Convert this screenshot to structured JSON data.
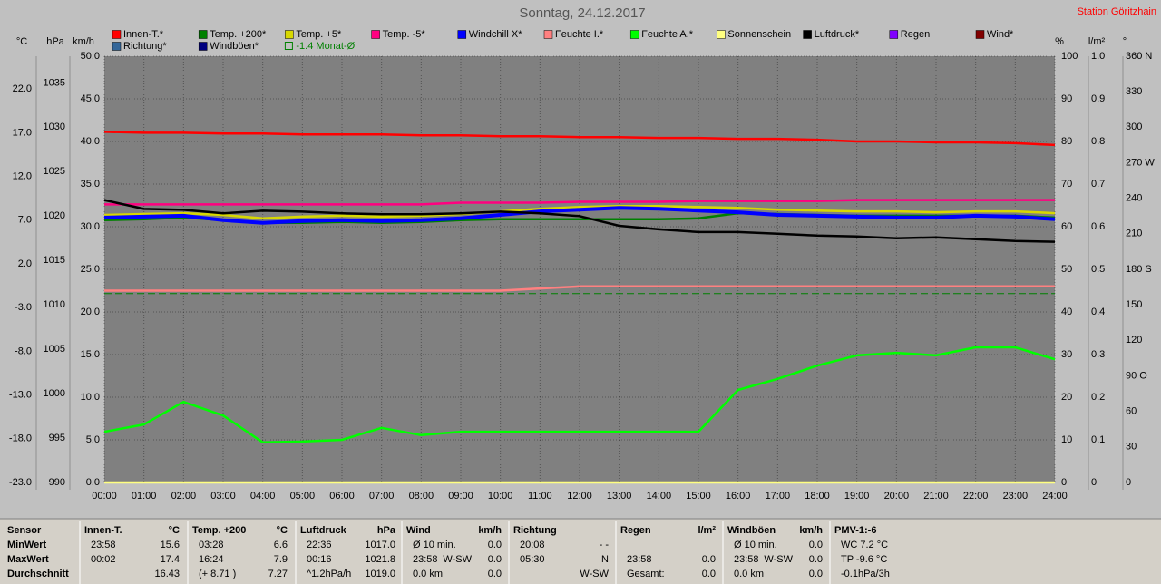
{
  "chart_data": {
    "type": "line",
    "title": "Sonntag, 24.12.2017",
    "station": "Station Göritzhain",
    "x": [
      0,
      1,
      2,
      3,
      4,
      5,
      6,
      7,
      8,
      9,
      10,
      11,
      12,
      13,
      14,
      15,
      16,
      17,
      18,
      19,
      20,
      21,
      22,
      23,
      24
    ],
    "xlim": [
      0,
      24
    ],
    "xticks": [
      {
        "value": 0,
        "label": "00:00"
      },
      {
        "value": 1,
        "label": "01:00"
      },
      {
        "value": 2,
        "label": "02:00"
      },
      {
        "value": 3,
        "label": "03:00"
      },
      {
        "value": 4,
        "label": "04:00"
      },
      {
        "value": 5,
        "label": "05:00"
      },
      {
        "value": 6,
        "label": "06:00"
      },
      {
        "value": 7,
        "label": "07:00"
      },
      {
        "value": 8,
        "label": "08:00"
      },
      {
        "value": 9,
        "label": "09:00"
      },
      {
        "value": 10,
        "label": "10:00"
      },
      {
        "value": 11,
        "label": "11:00"
      },
      {
        "value": 12,
        "label": "12:00"
      },
      {
        "value": 13,
        "label": "13:00"
      },
      {
        "value": 14,
        "label": "14:00"
      },
      {
        "value": 15,
        "label": "15:00"
      },
      {
        "value": 16,
        "label": "16:00"
      },
      {
        "value": 17,
        "label": "17:00"
      },
      {
        "value": 18,
        "label": "18:00"
      },
      {
        "value": 19,
        "label": "19:00"
      },
      {
        "value": 20,
        "label": "20:00"
      },
      {
        "value": 21,
        "label": "21:00"
      },
      {
        "value": 22,
        "label": "22:00"
      },
      {
        "value": 23,
        "label": "23:00"
      },
      {
        "value": 24,
        "label": "24:00"
      }
    ],
    "grid": true,
    "axes": {
      "temp": {
        "label": "°C",
        "lim": [
          -23,
          25.75
        ],
        "ticks": [
          {
            "value": 22,
            "label": "22.0"
          },
          {
            "value": 17,
            "label": "17.0"
          },
          {
            "value": 12,
            "label": "12.0"
          },
          {
            "value": 7,
            "label": "7.0"
          },
          {
            "value": 2,
            "label": "2.0"
          },
          {
            "value": -3,
            "label": "-3.0"
          },
          {
            "value": -8,
            "label": "-8.0"
          },
          {
            "value": -13,
            "label": "-13.0"
          },
          {
            "value": -18,
            "label": "-18.0"
          },
          {
            "value": -23,
            "label": "-23.0"
          }
        ]
      },
      "hpa": {
        "label": "hPa",
        "lim": [
          990,
          1038
        ],
        "ticks": [
          1035,
          1030,
          1025,
          1020,
          1015,
          1010,
          1005,
          1000,
          995,
          990
        ]
      },
      "kmh": {
        "label": "km/h",
        "lim": [
          0,
          50
        ],
        "ticks": [
          {
            "value": 50,
            "label": "50.0"
          },
          {
            "value": 45,
            "label": "45.0"
          },
          {
            "value": 40,
            "label": "40.0"
          },
          {
            "value": 35,
            "label": "35.0"
          },
          {
            "value": 30,
            "label": "30.0"
          },
          {
            "value": 25,
            "label": "25.0"
          },
          {
            "value": 20,
            "label": "20.0"
          },
          {
            "value": 15,
            "label": "15.0"
          },
          {
            "value": 10,
            "label": "10.0"
          },
          {
            "value": 5,
            "label": "5.0"
          },
          {
            "value": 0,
            "label": "0.0"
          }
        ]
      },
      "pct": {
        "label": "%",
        "lim": [
          0,
          100
        ],
        "ticks": [
          100,
          90,
          80,
          70,
          60,
          50,
          40,
          30,
          20,
          10,
          0
        ]
      },
      "rain": {
        "label": "l/m²",
        "lim": [
          0,
          1
        ],
        "ticks": [
          {
            "value": 1,
            "label": "1.0"
          },
          0.9,
          0.8,
          0.7,
          0.6,
          0.5,
          0.4,
          0.3,
          0.2,
          0.1,
          0
        ]
      },
      "deg": {
        "label": "°",
        "lim": [
          0,
          360
        ],
        "ticks": [
          {
            "value": 360,
            "label": "360 N"
          },
          330,
          300,
          {
            "value": 270,
            "label": "270 W"
          },
          240,
          210,
          {
            "value": 180,
            "label": "180 S"
          },
          150,
          120,
          {
            "value": 90,
            "label": "90 O"
          },
          60,
          30,
          0
        ]
      }
    },
    "series": [
      {
        "name": "Innen-T.*",
        "color": "#ff0000",
        "axis": "temp",
        "values": [
          17.1,
          17.0,
          17.0,
          16.9,
          16.9,
          16.8,
          16.8,
          16.8,
          16.7,
          16.7,
          16.6,
          16.6,
          16.5,
          16.5,
          16.4,
          16.4,
          16.3,
          16.3,
          16.2,
          16.0,
          16.0,
          15.9,
          15.9,
          15.8,
          15.6
        ]
      },
      {
        "name": "Temp. +200*",
        "color": "#008000",
        "axis": "temp",
        "values": [
          7.0,
          7.1,
          7.3,
          7.0,
          6.7,
          6.7,
          6.8,
          6.7,
          6.8,
          7.0,
          7.1,
          7.1,
          7.1,
          7.1,
          7.1,
          7.2,
          7.8,
          7.7,
          7.6,
          7.5,
          7.5,
          7.5,
          7.5,
          7.5,
          7.3
        ]
      },
      {
        "name": "Temp. +5*",
        "color": "#d8d800",
        "axis": "temp",
        "values": [
          7.6,
          7.7,
          7.8,
          7.6,
          7.2,
          7.4,
          7.5,
          7.4,
          7.5,
          7.7,
          8.0,
          8.3,
          8.5,
          8.6,
          8.6,
          8.5,
          8.4,
          8.2,
          8.1,
          8.0,
          8.0,
          7.9,
          8.0,
          8.0,
          7.8
        ]
      },
      {
        "name": "Temp. -5*",
        "color": "#ff0080",
        "axis": "temp",
        "values": [
          8.8,
          8.8,
          8.8,
          8.8,
          8.8,
          8.8,
          8.8,
          8.8,
          8.8,
          9.0,
          9.0,
          9.0,
          9.1,
          9.1,
          9.1,
          9.2,
          9.2,
          9.2,
          9.2,
          9.3,
          9.3,
          9.3,
          9.3,
          9.3,
          9.3
        ]
      },
      {
        "name": "Windchill X*",
        "color": "#0000ff",
        "axis": "temp",
        "values": [
          7.3,
          7.4,
          7.5,
          7.0,
          6.7,
          6.9,
          7.0,
          6.9,
          7.0,
          7.2,
          7.6,
          8.0,
          8.2,
          8.4,
          8.3,
          8.1,
          7.9,
          7.6,
          7.5,
          7.4,
          7.3,
          7.3,
          7.5,
          7.4,
          7.1
        ]
      },
      {
        "name": "Feuchte I.*",
        "color": "#ff8080",
        "axis": "pct",
        "values": [
          45,
          45,
          45,
          45,
          45,
          45,
          45,
          45,
          45,
          45,
          45,
          45.5,
          46,
          46,
          46,
          46,
          46,
          46,
          46,
          46,
          46,
          46,
          46,
          46,
          46
        ]
      },
      {
        "name": "Feuchte A.*",
        "color": "#00ff00",
        "axis": "pct",
        "values": [
          11.9,
          13.6,
          18.9,
          15.7,
          9.4,
          9.6,
          10,
          12.8,
          11.1,
          11.9,
          11.9,
          11.9,
          11.9,
          11.9,
          11.9,
          11.9,
          21.7,
          24.3,
          27.4,
          29.8,
          30.4,
          29.8,
          31.7,
          31.7,
          28.9
        ]
      },
      {
        "name": "Sonnenschein",
        "color": "#ffff80",
        "axis": "pct",
        "values": [
          0,
          0,
          0,
          0,
          0,
          0,
          0,
          0,
          0,
          0,
          0,
          0,
          0,
          0,
          0,
          0,
          0,
          0,
          0,
          0,
          0,
          0,
          0,
          0,
          0
        ]
      },
      {
        "name": "Luftdruck*",
        "color": "#000000",
        "axis": "hpa",
        "values": [
          1021.8,
          1020.8,
          1020.7,
          1020.3,
          1020.6,
          1020.5,
          1020.3,
          1020.2,
          1020.2,
          1020.3,
          1020.5,
          1020.3,
          1020.0,
          1018.9,
          1018.5,
          1018.2,
          1018.2,
          1018.0,
          1017.8,
          1017.7,
          1017.5,
          1017.6,
          1017.4,
          1017.2,
          1017.1
        ]
      },
      {
        "name": "Regen",
        "color": "#8000ff"
      },
      {
        "name": "Wind*",
        "color": "#800000"
      },
      {
        "name": "Richtung*",
        "color": "#336699"
      },
      {
        "name": "Windböen*",
        "color": "#000080"
      }
    ],
    "reference": {
      "label": "-1.4 Monat-Ø",
      "value": -1.4,
      "axis": "temp",
      "color": "#008000"
    }
  },
  "footer": {
    "groups": [
      {
        "header": {
          "left": "Sensor"
        },
        "rows": [
          {
            "left": "MinWert"
          },
          {
            "left": "MaxWert"
          },
          {
            "left": "Durchschnitt"
          }
        ]
      },
      {
        "header": {
          "left": "Innen-T.",
          "right": "°C"
        },
        "rows": [
          {
            "left": "23:58",
            "right": "15.6"
          },
          {
            "left": "00:02",
            "right": "17.4"
          },
          {
            "right": "16.43"
          }
        ]
      },
      {
        "header": {
          "left": "Temp. +200",
          "right": "°C"
        },
        "rows": [
          {
            "left": "03:28",
            "right": "6.6"
          },
          {
            "left": "16:24",
            "right": "7.9"
          },
          {
            "left": "(+ 8.71 )",
            "right": "7.27"
          }
        ]
      },
      {
        "header": {
          "left": "Luftdruck",
          "right": "hPa"
        },
        "rows": [
          {
            "left": "22:36",
            "right": "1017.0"
          },
          {
            "left": "00:16",
            "right": "1021.8"
          },
          {
            "left": "^1.2hPa/h",
            "right": "1019.0"
          }
        ]
      },
      {
        "header": {
          "left": "Wind",
          "right": "km/h"
        },
        "rows": [
          {
            "left": "Ø 10 min.",
            "right": "0.0"
          },
          {
            "left": "23:58",
            "mid": "W-SW",
            "right": "0.0"
          },
          {
            "left": "0.0 km",
            "right": "0.0"
          }
        ]
      },
      {
        "header": {
          "left": "Richtung"
        },
        "rows": [
          {
            "left": "20:08",
            "right": "- -"
          },
          {
            "left": "05:30",
            "right": "N"
          },
          {
            "right": "W-SW"
          }
        ]
      },
      {
        "header": {
          "left": "Regen",
          "right": "l/m²"
        },
        "rows": [
          {},
          {
            "left": "23:58",
            "right": "0.0"
          },
          {
            "left": "Gesamt:",
            "right": "0.0"
          }
        ]
      },
      {
        "header": {
          "left": "Windböen",
          "right": "km/h"
        },
        "rows": [
          {
            "left": "Ø 10 min.",
            "right": "0.0"
          },
          {
            "left": "23:58",
            "mid": "W-SW",
            "right": "0.0"
          },
          {
            "left": "0.0 km",
            "right": "0.0"
          }
        ]
      },
      {
        "header": {
          "left": "PMV-1:-6"
        },
        "rows": [
          {
            "left": "WC 7.2 °C"
          },
          {
            "left": "TP -9.6 °C"
          },
          {
            "left": "-0.1hPa/3h"
          }
        ]
      }
    ]
  }
}
